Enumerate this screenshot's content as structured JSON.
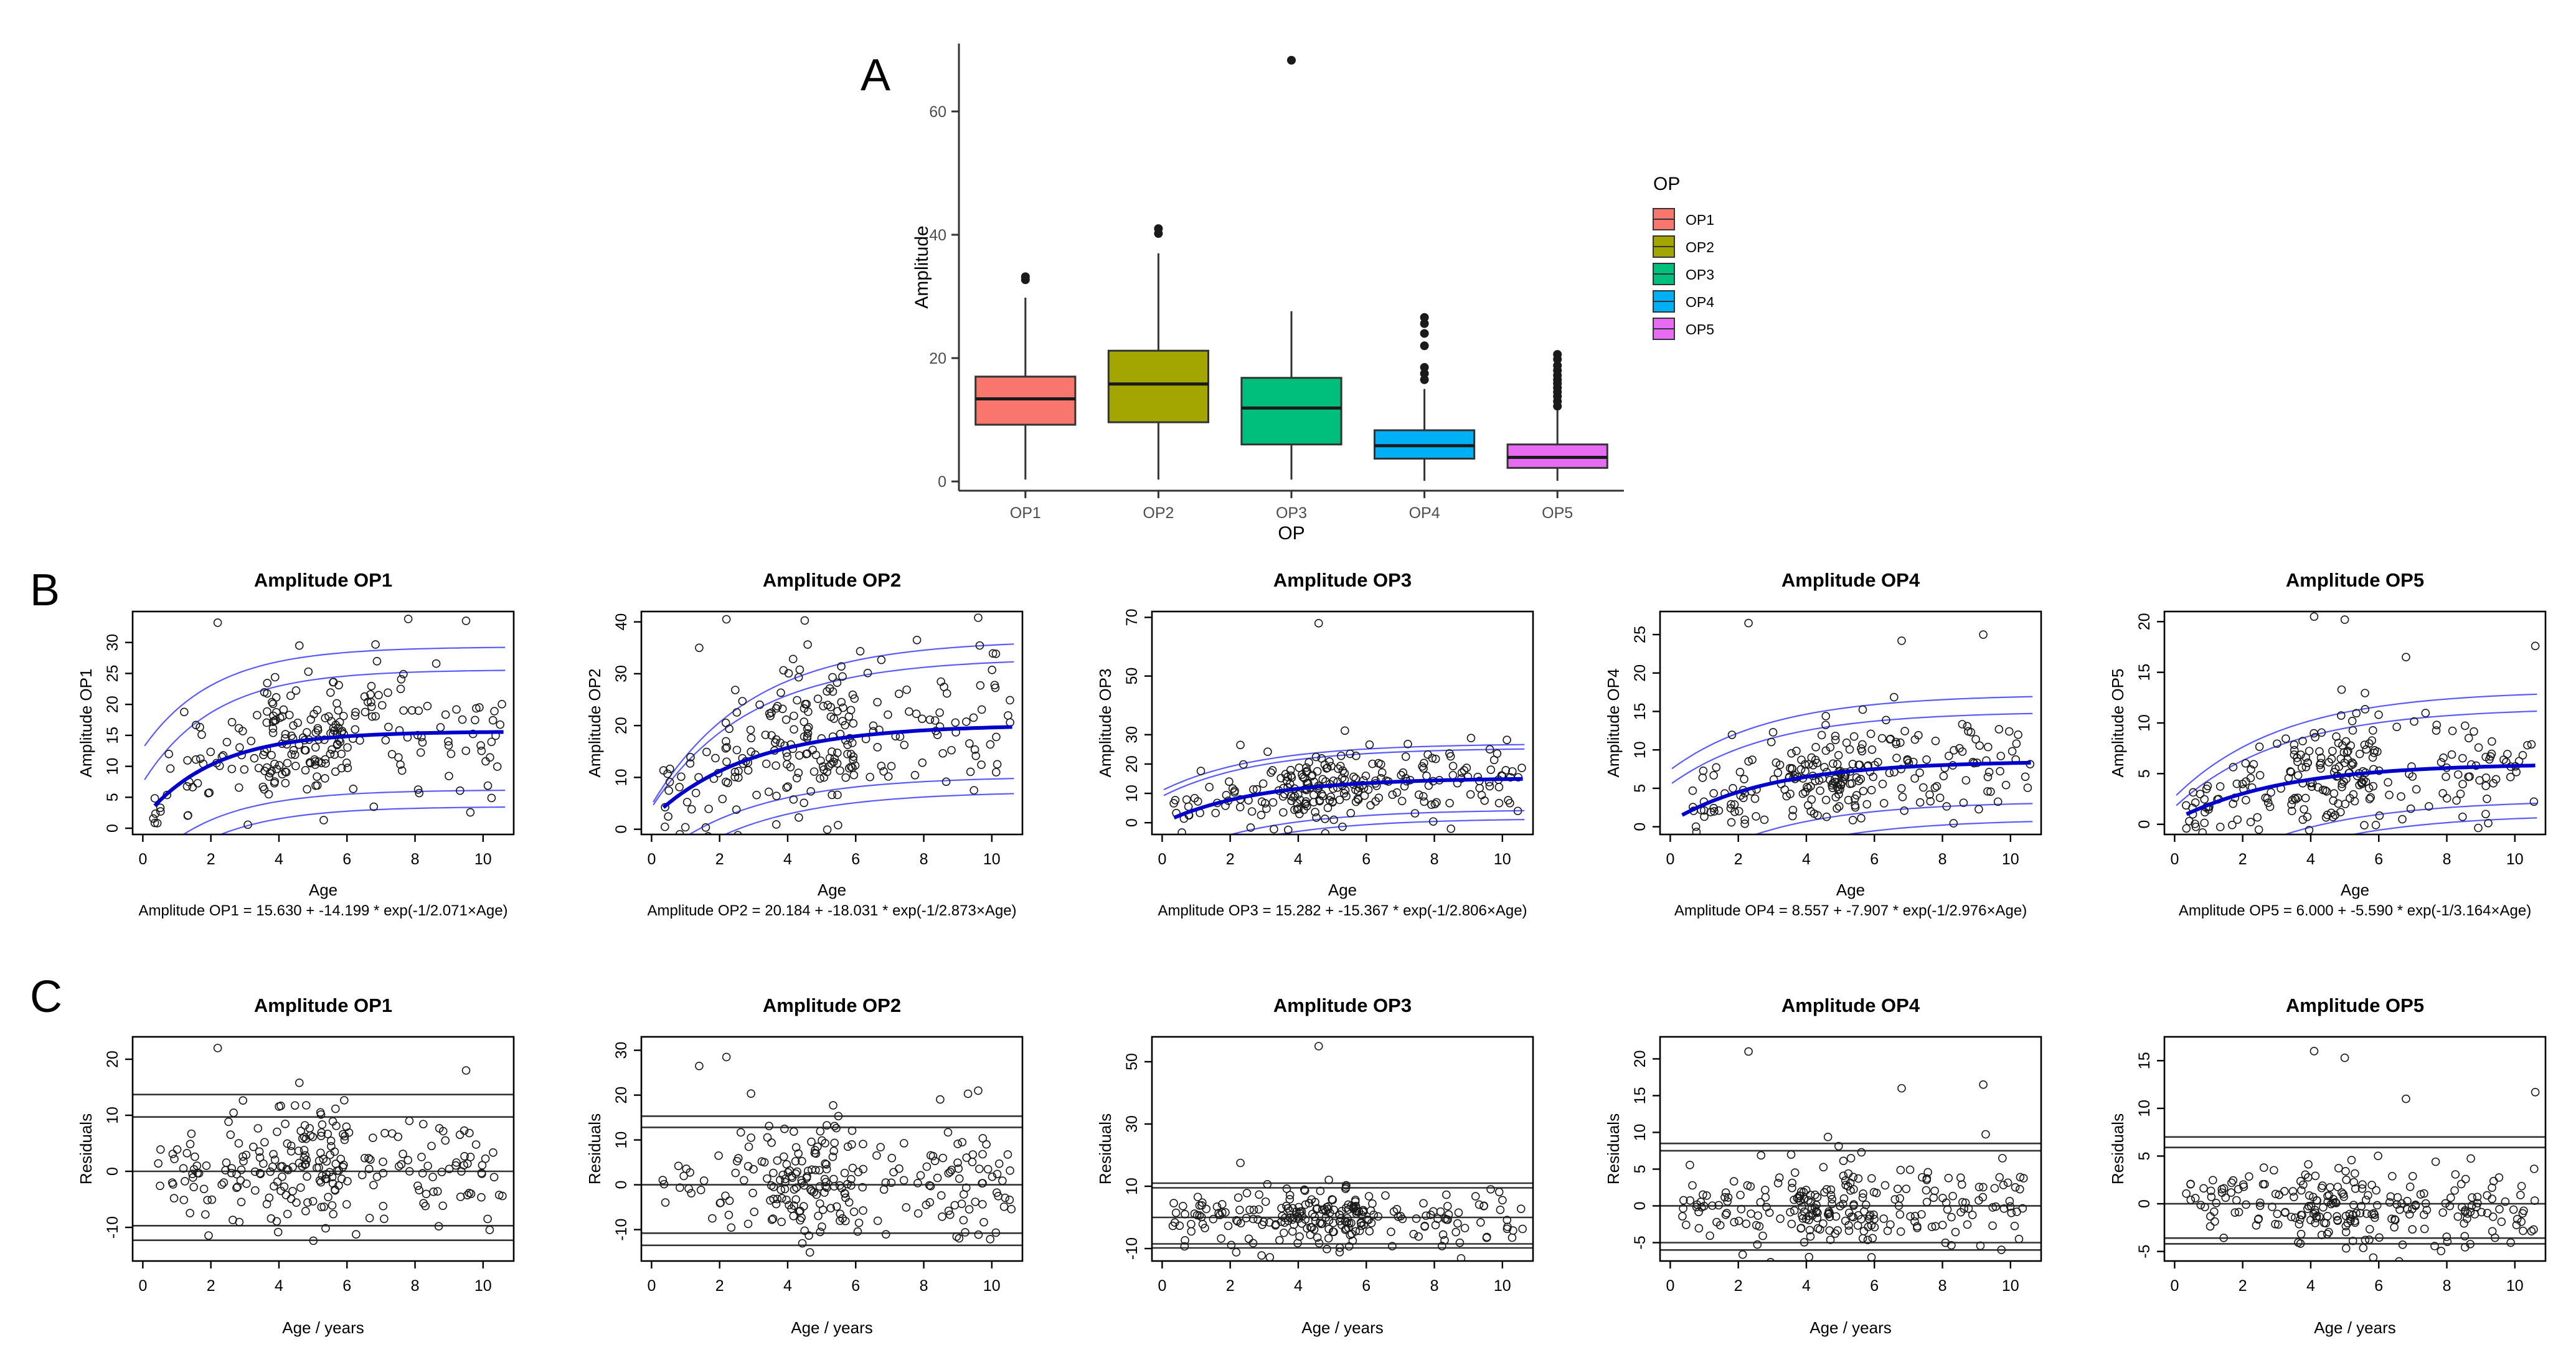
{
  "panel_labels": [
    "A",
    "B",
    "C"
  ],
  "chart_data": [
    {
      "id": "A",
      "type": "box",
      "xlabel": "OP",
      "ylabel": "Amplitude",
      "categories": [
        "OP1",
        "OP2",
        "OP3",
        "OP4",
        "OP5"
      ],
      "colors": [
        "#F8766D",
        "#A3A500",
        "#00BF7D",
        "#00B0F6",
        "#E76BF3"
      ],
      "boxes": [
        {
          "min": 0.3,
          "q1": 9.2,
          "median": 13.4,
          "q3": 17.0,
          "max": 29.8,
          "outliers": [
            32.7,
            33.2
          ]
        },
        {
          "min": 0.3,
          "q1": 9.6,
          "median": 15.8,
          "q3": 21.2,
          "max": 37.0,
          "outliers": [
            40.2,
            41.0
          ]
        },
        {
          "min": 0.3,
          "q1": 6.0,
          "median": 11.9,
          "q3": 16.8,
          "max": 27.6,
          "outliers": [
            68.3
          ]
        },
        {
          "min": 0.1,
          "q1": 3.7,
          "median": 5.8,
          "q3": 8.3,
          "max": 15.0,
          "outliers": [
            16.5,
            17.5,
            18.5,
            22.0,
            24.0,
            25.6,
            26.6
          ]
        },
        {
          "min": 0.1,
          "q1": 2.2,
          "median": 3.9,
          "q3": 6.0,
          "max": 11.5,
          "outliers": [
            12.2,
            13.0,
            13.8,
            14.5,
            15.2,
            15.9,
            16.5,
            17.2,
            18.0,
            18.8,
            19.8,
            20.6
          ]
        }
      ],
      "ylim": [
        -1.5,
        71
      ],
      "yticks": [
        0,
        20,
        40,
        60
      ],
      "legend": {
        "title": "OP",
        "labels": [
          "OP1",
          "OP2",
          "OP3",
          "OP4",
          "OP5"
        ],
        "position": "right"
      }
    },
    {
      "id": "B",
      "type": "scatter_fit",
      "title": "Amplitude OP1",
      "xlabel": "Age",
      "ylabel": "Amplitude OP1",
      "formula": "Amplitude OP1 = 15.630 + -14.199 * exp(-1/2.071×Age)",
      "fit": {
        "a": 15.63,
        "b": -14.199,
        "tau": 2.071
      },
      "bands": [
        [
          25.6,
          18.2
        ],
        [
          29.3,
          16.4
        ],
        [
          6.2,
          12.8
        ],
        [
          3.5,
          13.6
        ]
      ],
      "xlim": [
        -0.3,
        10.9
      ],
      "ylim": [
        -1,
        35
      ],
      "xticks": [
        0,
        2,
        4,
        6,
        8,
        10
      ],
      "yticks": [
        0,
        5,
        10,
        15,
        20,
        25,
        30
      ],
      "n_points": 240,
      "seed": 11,
      "sd": 5.2,
      "outliers": [
        [
          2.2,
          33.2
        ],
        [
          9.5,
          33.5
        ],
        [
          7.8,
          33.8
        ],
        [
          4.6,
          29.5
        ]
      ]
    },
    {
      "id": "B",
      "type": "scatter_fit",
      "title": "Amplitude OP2",
      "xlabel": "Age",
      "ylabel": "Amplitude OP2",
      "formula": "Amplitude OP2 = 20.184 + -18.031 * exp(-1/2.873×Age)",
      "fit": {
        "a": 20.184,
        "b": -18.031,
        "tau": 2.873
      },
      "bands": [
        [
          33.0,
          28.8
        ],
        [
          36.5,
          31.8
        ],
        [
          10.2,
          16.5
        ],
        [
          7.3,
          17.6
        ]
      ],
      "xlim": [
        -0.3,
        10.9
      ],
      "ylim": [
        -1,
        42
      ],
      "xticks": [
        0,
        2,
        4,
        6,
        8,
        10
      ],
      "yticks": [
        0,
        10,
        20,
        30,
        40
      ],
      "n_points": 240,
      "seed": 23,
      "sd": 7.0,
      "outliers": [
        [
          2.2,
          40.5
        ],
        [
          9.6,
          40.8
        ],
        [
          7.8,
          36.5
        ],
        [
          1.4,
          35.0
        ]
      ]
    },
    {
      "id": "B",
      "type": "scatter_fit",
      "title": "Amplitude OP3",
      "xlabel": "Age",
      "ylabel": "Amplitude OP3",
      "formula": "Amplitude OP3 = 15.282 + -15.367 * exp(-1/2.806×Age)",
      "fit": {
        "a": 15.282,
        "b": -15.367,
        "tau": 2.806
      },
      "bands": [
        [
          25.5,
          16.5
        ],
        [
          27.0,
          16.0
        ],
        [
          4.5,
          17.5
        ],
        [
          1.5,
          18.5
        ]
      ],
      "xlim": [
        -0.3,
        10.9
      ],
      "ylim": [
        -4,
        72
      ],
      "xticks": [
        0,
        2,
        4,
        6,
        8,
        10
      ],
      "yticks": [
        0,
        10,
        20,
        30,
        50,
        70
      ],
      "n_points": 240,
      "seed": 37,
      "sd": 6.0,
      "outliers": [
        [
          4.6,
          68.0
        ],
        [
          2.3,
          26.5
        ]
      ]
    },
    {
      "id": "B",
      "type": "scatter_fit",
      "title": "Amplitude OP4",
      "xlabel": "Age",
      "ylabel": "Amplitude OP4",
      "formula": "Amplitude OP4 = 8.557 + -7.907 * exp(-1/2.976×Age)",
      "fit": {
        "a": 8.557,
        "b": -7.907,
        "tau": 2.976
      },
      "bands": [
        [
          15.0,
          9.5
        ],
        [
          17.2,
          9.8
        ],
        [
          3.3,
          10.0
        ],
        [
          1.0,
          11.5
        ]
      ],
      "xlim": [
        -0.3,
        10.9
      ],
      "ylim": [
        -1,
        28
      ],
      "xticks": [
        0,
        2,
        4,
        6,
        8,
        10
      ],
      "yticks": [
        0,
        5,
        10,
        15,
        20,
        25
      ],
      "n_points": 240,
      "seed": 41,
      "sd": 3.2,
      "outliers": [
        [
          2.3,
          26.5
        ],
        [
          9.2,
          25.0
        ],
        [
          6.8,
          24.2
        ]
      ]
    },
    {
      "id": "B",
      "type": "scatter_fit",
      "title": "Amplitude OP5",
      "xlabel": "Age",
      "ylabel": "Amplitude OP5",
      "formula": "Amplitude OP5 = 6.000 + -5.590 * exp(-1/3.164×Age)",
      "fit": {
        "a": 6.0,
        "b": -5.59,
        "tau": 3.164
      },
      "bands": [
        [
          11.5,
          9.8
        ],
        [
          13.2,
          10.5
        ],
        [
          2.4,
          9.5
        ],
        [
          1.0,
          10.5
        ]
      ],
      "xlim": [
        -0.3,
        10.9
      ],
      "ylim": [
        -1,
        21
      ],
      "xticks": [
        0,
        2,
        4,
        6,
        8,
        10
      ],
      "yticks": [
        0,
        5,
        10,
        15,
        20
      ],
      "n_points": 240,
      "seed": 53,
      "sd": 2.6,
      "outliers": [
        [
          4.1,
          20.5
        ],
        [
          5.0,
          20.2
        ],
        [
          10.6,
          17.6
        ],
        [
          6.8,
          16.5
        ]
      ]
    },
    {
      "id": "C",
      "type": "residuals",
      "title": "Amplitude OP1",
      "xlabel": "Age / years",
      "ylabel": "Residuals",
      "hlines": [
        13.7,
        9.7,
        0,
        -9.7,
        -12.3
      ],
      "xlim": [
        -0.3,
        10.9
      ],
      "ylim": [
        -16,
        24
      ],
      "xticks": [
        0,
        2,
        4,
        6,
        8,
        10
      ],
      "yticks": [
        -10,
        0,
        10,
        20
      ],
      "n_points": 240,
      "seed": 61,
      "sd": 5.2,
      "outliers": [
        [
          2.2,
          22.0
        ],
        [
          9.5,
          18.0
        ],
        [
          4.6,
          15.8
        ]
      ]
    },
    {
      "id": "C",
      "type": "residuals",
      "title": "Amplitude OP2",
      "xlabel": "Age / years",
      "ylabel": "Residuals",
      "hlines": [
        15.3,
        12.8,
        0,
        -10.8,
        -13.5
      ],
      "xlim": [
        -0.3,
        10.9
      ],
      "ylim": [
        -17,
        33
      ],
      "xticks": [
        0,
        2,
        4,
        6,
        8,
        10
      ],
      "yticks": [
        -10,
        0,
        10,
        20,
        30
      ],
      "n_points": 240,
      "seed": 73,
      "sd": 6.8,
      "outliers": [
        [
          2.2,
          28.5
        ],
        [
          1.4,
          26.5
        ],
        [
          9.6,
          21.0
        ],
        [
          9.3,
          20.3
        ]
      ]
    },
    {
      "id": "C",
      "type": "residuals",
      "title": "Amplitude OP3",
      "xlabel": "Age / years",
      "ylabel": "Residuals",
      "hlines": [
        11.0,
        9.5,
        0,
        -8.5,
        -9.8
      ],
      "xlim": [
        -0.3,
        10.9
      ],
      "ylim": [
        -14,
        58
      ],
      "xticks": [
        0,
        2,
        4,
        6,
        8,
        10
      ],
      "yticks": [
        -10,
        10,
        30,
        50
      ],
      "n_points": 240,
      "seed": 89,
      "sd": 5.0,
      "outliers": [
        [
          4.6,
          55.0
        ],
        [
          2.3,
          17.5
        ]
      ]
    },
    {
      "id": "C",
      "type": "residuals",
      "title": "Amplitude OP4",
      "xlabel": "Age / years",
      "ylabel": "Residuals",
      "hlines": [
        8.5,
        7.5,
        0,
        -5.0,
        -6.0
      ],
      "xlim": [
        -0.3,
        10.9
      ],
      "ylim": [
        -7.5,
        23
      ],
      "xticks": [
        0,
        2,
        4,
        6,
        8,
        10
      ],
      "yticks": [
        -5,
        0,
        5,
        10,
        15,
        20
      ],
      "n_points": 240,
      "seed": 97,
      "sd": 3.0,
      "outliers": [
        [
          2.3,
          21.0
        ],
        [
          9.2,
          16.5
        ],
        [
          6.8,
          16.0
        ]
      ]
    },
    {
      "id": "C",
      "type": "residuals",
      "title": "Amplitude OP5",
      "xlabel": "Age / years",
      "ylabel": "Residuals",
      "hlines": [
        7.0,
        5.9,
        0,
        -3.6,
        -4.2
      ],
      "xlim": [
        -0.3,
        10.9
      ],
      "ylim": [
        -6,
        17.5
      ],
      "xticks": [
        0,
        2,
        4,
        6,
        8,
        10
      ],
      "yticks": [
        -5,
        0,
        5,
        10,
        15
      ],
      "n_points": 240,
      "seed": 109,
      "sd": 2.4,
      "outliers": [
        [
          4.1,
          16.0
        ],
        [
          5.0,
          15.3
        ],
        [
          10.6,
          11.7
        ],
        [
          6.8,
          11.0
        ]
      ]
    }
  ]
}
